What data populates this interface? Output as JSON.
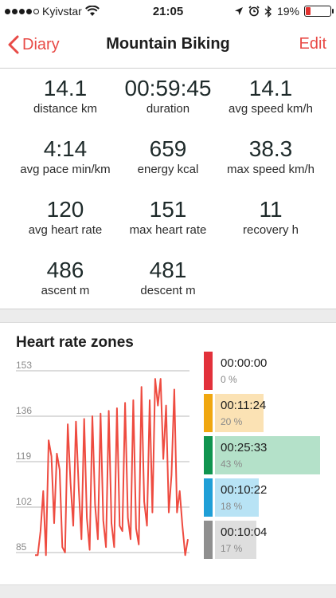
{
  "status_bar": {
    "carrier": "Kyivstar",
    "time": "21:05",
    "battery": "19%",
    "battery_level": 0.19,
    "battery_color": "#e2312f",
    "icons": [
      "signal-dots-icon",
      "wifi-icon",
      "location-arrow-icon",
      "alarm-icon",
      "bluetooth-icon",
      "battery-icon"
    ]
  },
  "nav": {
    "back_label": "Diary",
    "title": "Mountain Biking",
    "edit_label": "Edit",
    "accent": "#e84a46"
  },
  "stats": [
    {
      "value": "14.1",
      "label": "distance km"
    },
    {
      "value": "00:59:45",
      "label": "duration"
    },
    {
      "value": "14.1",
      "label": "avg speed km/h"
    },
    {
      "value": "4:14",
      "label": "avg pace min/km"
    },
    {
      "value": "659",
      "label": "energy kcal"
    },
    {
      "value": "38.3",
      "label": "max speed km/h"
    },
    {
      "value": "120",
      "label": "avg heart rate"
    },
    {
      "value": "151",
      "label": "max heart rate"
    },
    {
      "value": "11",
      "label": "recovery h"
    },
    {
      "value": "486",
      "label": "ascent m"
    },
    {
      "value": "481",
      "label": "descent m"
    }
  ],
  "heart_rate": {
    "title": "Heart rate zones",
    "zones": [
      {
        "time": "00:00:00",
        "percent": "0 %",
        "fraction": 0.0,
        "color": "#e2313b",
        "bg": "#f7c9cc"
      },
      {
        "time": "00:11:24",
        "percent": "20 %",
        "fraction": 0.2,
        "color": "#f0a70f",
        "bg": "#fbe2b4"
      },
      {
        "time": "00:25:33",
        "percent": "43 %",
        "fraction": 0.43,
        "color": "#10944f",
        "bg": "#b4e1c9"
      },
      {
        "time": "00:10:22",
        "percent": "18 %",
        "fraction": 0.18,
        "color": "#1f9fd7",
        "bg": "#b8e3f5"
      },
      {
        "time": "00:10:04",
        "percent": "17 %",
        "fraction": 0.17,
        "color": "#8f8f8f",
        "bg": "#dedede"
      }
    ]
  },
  "chart_data": {
    "type": "line",
    "title": "Heart rate zones",
    "xlabel": "",
    "ylabel": "",
    "y_ticks": [
      153,
      136,
      119,
      102,
      85
    ],
    "ylim": [
      82,
      156
    ],
    "grid": true,
    "line_color": "#ee4b40",
    "series": [
      {
        "values": [
          84,
          84,
          93,
          108,
          84,
          127,
          121,
          96,
          122,
          116,
          87,
          85,
          133,
          111,
          95,
          134,
          109,
          90,
          135,
          98,
          86,
          136,
          103,
          90,
          137,
          97,
          87,
          138,
          96,
          87,
          139,
          95,
          93,
          141,
          98,
          90,
          142,
          94,
          88,
          147,
          104,
          95,
          142,
          100,
          150,
          140,
          150,
          120,
          140,
          100,
          114,
          146,
          100,
          108,
          95,
          84,
          90
        ]
      }
    ]
  }
}
